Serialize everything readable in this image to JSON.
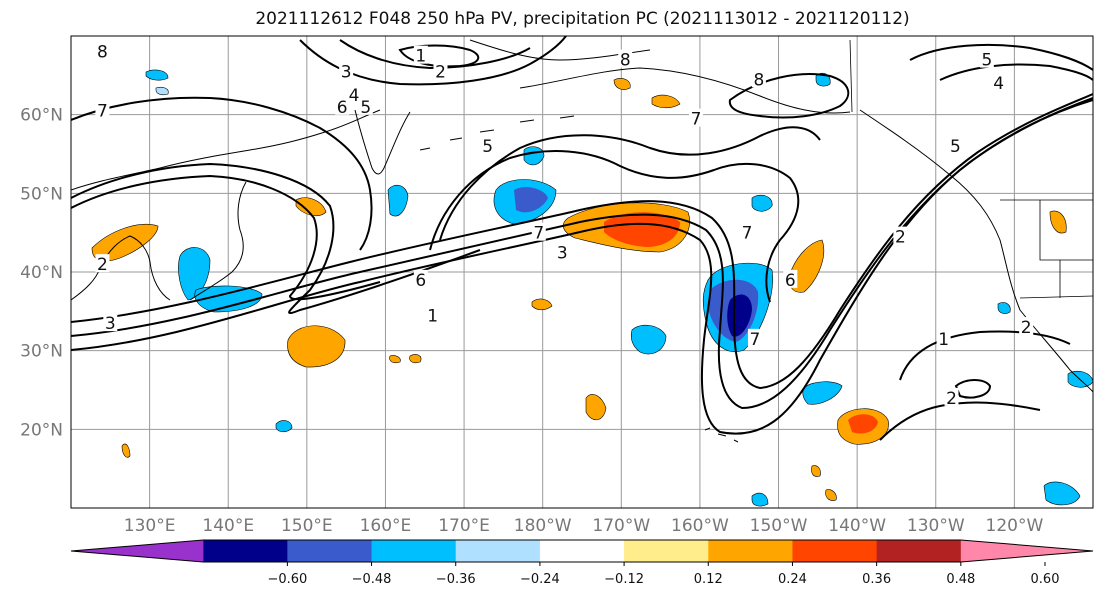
{
  "title": "2021112612 F048 250 hPa PV, precipitation PC (2021113012 - 2021120112)",
  "map": {
    "lon_range": [
      120,
      250
    ],
    "lat_range": [
      10,
      70
    ],
    "lat_ticks": [
      {
        "lat": 60,
        "label": "60°N"
      },
      {
        "lat": 50,
        "label": "50°N"
      },
      {
        "lat": 40,
        "label": "40°N"
      },
      {
        "lat": 30,
        "label": "30°N"
      },
      {
        "lat": 20,
        "label": "20°N"
      }
    ],
    "lon_ticks": [
      {
        "lon": 130,
        "label": "130°E"
      },
      {
        "lon": 140,
        "label": "140°E"
      },
      {
        "lon": 150,
        "label": "150°E"
      },
      {
        "lon": 160,
        "label": "160°E"
      },
      {
        "lon": 170,
        "label": "170°E"
      },
      {
        "lon": 180,
        "label": "180°W"
      },
      {
        "lon": 190,
        "label": "170°W"
      },
      {
        "lon": 200,
        "label": "160°W"
      },
      {
        "lon": 210,
        "label": "150°W"
      },
      {
        "lon": 220,
        "label": "140°W"
      },
      {
        "lon": 230,
        "label": "130°W"
      },
      {
        "lon": 240,
        "label": "120°W"
      }
    ],
    "pv_contour_labels": [
      {
        "text": "8",
        "lon": 124,
        "lat": 68
      },
      {
        "text": "1",
        "lon": 164.5,
        "lat": 67.5
      },
      {
        "text": "2",
        "lon": 167,
        "lat": 65.5
      },
      {
        "text": "3",
        "lon": 155,
        "lat": 65.5
      },
      {
        "text": "4",
        "lon": 156,
        "lat": 62.5
      },
      {
        "text": "5",
        "lon": 157.5,
        "lat": 61
      },
      {
        "text": "6",
        "lon": 154.5,
        "lat": 61
      },
      {
        "text": "7",
        "lon": 124,
        "lat": 60.5
      },
      {
        "text": "5",
        "lon": 173,
        "lat": 56
      },
      {
        "text": "8",
        "lon": 190.5,
        "lat": 67
      },
      {
        "text": "8",
        "lon": 207.5,
        "lat": 64.5
      },
      {
        "text": "7",
        "lon": 199.5,
        "lat": 59.5
      },
      {
        "text": "7",
        "lon": 179.5,
        "lat": 45
      },
      {
        "text": "3",
        "lon": 182.5,
        "lat": 42.5
      },
      {
        "text": "6",
        "lon": 164.5,
        "lat": 39
      },
      {
        "text": "1",
        "lon": 166,
        "lat": 34.5
      },
      {
        "text": "2",
        "lon": 124,
        "lat": 41
      },
      {
        "text": "3",
        "lon": 125,
        "lat": 33.5
      },
      {
        "text": "7",
        "lon": 206,
        "lat": 45
      },
      {
        "text": "6",
        "lon": 211.5,
        "lat": 39
      },
      {
        "text": "7",
        "lon": 207,
        "lat": 31.5
      },
      {
        "text": "2",
        "lon": 225.5,
        "lat": 44.5
      },
      {
        "text": "5",
        "lon": 232.5,
        "lat": 56
      },
      {
        "text": "5",
        "lon": 236.5,
        "lat": 67
      },
      {
        "text": "4",
        "lon": 238,
        "lat": 64
      },
      {
        "text": "1",
        "lon": 231,
        "lat": 31.5
      },
      {
        "text": "2",
        "lon": 241.5,
        "lat": 33
      },
      {
        "text": "2",
        "lon": 232,
        "lat": 24
      }
    ]
  },
  "colorbar": {
    "tick_labels": [
      "−0.60",
      "−0.48",
      "−0.36",
      "−0.24",
      "−0.12",
      "0.12",
      "0.24",
      "0.36",
      "0.48",
      "0.60"
    ],
    "colors": [
      "#9932cc",
      "#00008b",
      "#3a5bcc",
      "#00bfff",
      "#b0e0ff",
      "#ffffff",
      "#ffec8b",
      "#ffa500",
      "#ff4500",
      "#b22222",
      "#ff88aa"
    ]
  },
  "colors": {
    "land": "#ffffff",
    "grid": "#999999",
    "coast": "#000000"
  }
}
